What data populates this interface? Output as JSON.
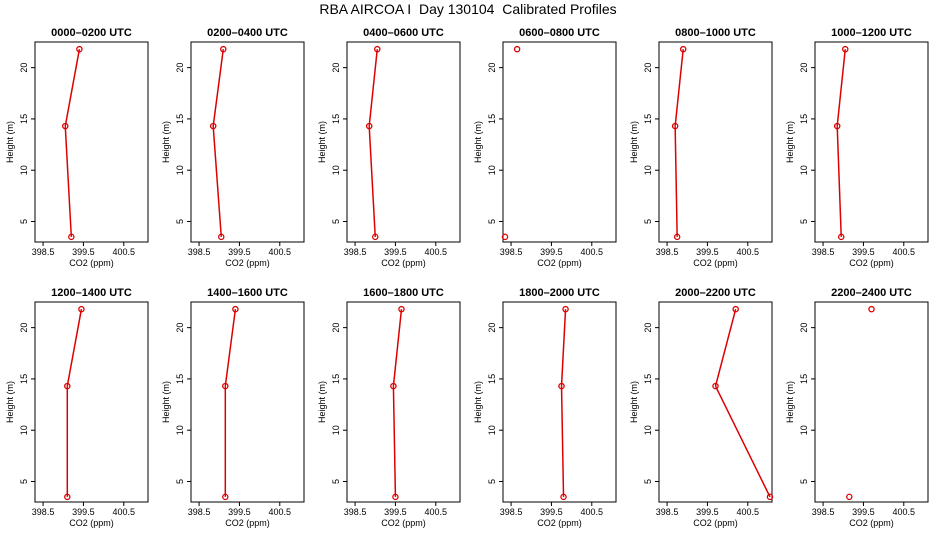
{
  "title": "RBA AIRCOA I  Day 130104  Calibrated Profiles",
  "colors": {
    "line": "#dd0000",
    "axis": "#000000",
    "background": "#ffffff"
  },
  "chart_data": [
    {
      "type": "line",
      "title": "0000–0200 UTC",
      "xlabel": "CO2 (ppm)",
      "ylabel": "Height (m)",
      "xlim": [
        398.3,
        401.1
      ],
      "ylim": [
        3,
        22.5
      ],
      "xticks": [
        398.5,
        399.5,
        400.5
      ],
      "xtick_labels": [
        "398.5",
        "399.5",
        "400.5"
      ],
      "yticks": [
        5,
        10,
        15,
        20
      ],
      "ytick_labels": [
        "5",
        "10",
        "15",
        "20"
      ],
      "points": [
        {
          "x": 399.2,
          "y": 3.5
        },
        {
          "x": 399.05,
          "y": 14.3
        },
        {
          "x": 399.4,
          "y": 21.8
        }
      ],
      "segments": [
        [
          0,
          1
        ],
        [
          1,
          2
        ]
      ]
    },
    {
      "type": "line",
      "title": "0200–0400 UTC",
      "xlabel": "CO2 (ppm)",
      "ylabel": "Height (m)",
      "xlim": [
        398.3,
        401.1
      ],
      "ylim": [
        3,
        22.5
      ],
      "xticks": [
        398.5,
        399.5,
        400.5
      ],
      "xtick_labels": [
        "398.5",
        "399.5",
        "400.5"
      ],
      "yticks": [
        5,
        10,
        15,
        20
      ],
      "ytick_labels": [
        "5",
        "10",
        "15",
        "20"
      ],
      "points": [
        {
          "x": 399.05,
          "y": 3.5
        },
        {
          "x": 398.85,
          "y": 14.3
        },
        {
          "x": 399.1,
          "y": 21.8
        }
      ],
      "segments": [
        [
          0,
          1
        ],
        [
          1,
          2
        ]
      ]
    },
    {
      "type": "line",
      "title": "0400–0600 UTC",
      "xlabel": "CO2 (ppm)",
      "ylabel": "Height (m)",
      "xlim": [
        398.3,
        401.1
      ],
      "ylim": [
        3,
        22.5
      ],
      "xticks": [
        398.5,
        399.5,
        400.5
      ],
      "xtick_labels": [
        "398.5",
        "399.5",
        "400.5"
      ],
      "yticks": [
        5,
        10,
        15,
        20
      ],
      "ytick_labels": [
        "5",
        "10",
        "15",
        "20"
      ],
      "points": [
        {
          "x": 399.0,
          "y": 3.5
        },
        {
          "x": 398.85,
          "y": 14.3
        },
        {
          "x": 399.05,
          "y": 21.8
        }
      ],
      "segments": [
        [
          0,
          1
        ],
        [
          1,
          2
        ]
      ]
    },
    {
      "type": "line",
      "title": "0600–0800 UTC",
      "xlabel": "CO2 (ppm)",
      "ylabel": "Height (m)",
      "xlim": [
        398.3,
        401.1
      ],
      "ylim": [
        3,
        22.5
      ],
      "xticks": [
        398.5,
        399.5,
        400.5
      ],
      "xtick_labels": [
        "398.5",
        "399.5",
        "400.5"
      ],
      "yticks": [
        5,
        10,
        15,
        20
      ],
      "ytick_labels": [
        "5",
        "10",
        "15",
        "20"
      ],
      "points": [
        {
          "x": 398.35,
          "y": 3.5
        },
        {
          "x": 398.65,
          "y": 21.8
        }
      ],
      "segments": []
    },
    {
      "type": "line",
      "title": "0800–1000 UTC",
      "xlabel": "CO2 (ppm)",
      "ylabel": "Height (m)",
      "xlim": [
        398.3,
        401.1
      ],
      "ylim": [
        3,
        22.5
      ],
      "xticks": [
        398.5,
        399.5,
        400.5
      ],
      "xtick_labels": [
        "398.5",
        "399.5",
        "400.5"
      ],
      "yticks": [
        5,
        10,
        15,
        20
      ],
      "ytick_labels": [
        "5",
        "10",
        "15",
        "20"
      ],
      "points": [
        {
          "x": 398.75,
          "y": 3.5
        },
        {
          "x": 398.7,
          "y": 14.3
        },
        {
          "x": 398.9,
          "y": 21.8
        }
      ],
      "segments": [
        [
          0,
          1
        ],
        [
          1,
          2
        ]
      ]
    },
    {
      "type": "line",
      "title": "1000–1200 UTC",
      "xlabel": "CO2 (ppm)",
      "ylabel": "Height (m)",
      "xlim": [
        398.3,
        401.1
      ],
      "ylim": [
        3,
        22.5
      ],
      "xticks": [
        398.5,
        399.5,
        400.5
      ],
      "xtick_labels": [
        "398.5",
        "399.5",
        "400.5"
      ],
      "yticks": [
        5,
        10,
        15,
        20
      ],
      "ytick_labels": [
        "5",
        "10",
        "15",
        "20"
      ],
      "points": [
        {
          "x": 398.95,
          "y": 3.5
        },
        {
          "x": 398.85,
          "y": 14.3
        },
        {
          "x": 399.05,
          "y": 21.8
        }
      ],
      "segments": [
        [
          0,
          1
        ],
        [
          1,
          2
        ]
      ]
    },
    {
      "type": "line",
      "title": "1200–1400 UTC",
      "xlabel": "CO2 (ppm)",
      "ylabel": "Height (m)",
      "xlim": [
        398.3,
        401.1
      ],
      "ylim": [
        3,
        22.5
      ],
      "xticks": [
        398.5,
        399.5,
        400.5
      ],
      "xtick_labels": [
        "398.5",
        "399.5",
        "400.5"
      ],
      "yticks": [
        5,
        10,
        15,
        20
      ],
      "ytick_labels": [
        "5",
        "10",
        "15",
        "20"
      ],
      "points": [
        {
          "x": 399.1,
          "y": 3.5
        },
        {
          "x": 399.1,
          "y": 14.3
        },
        {
          "x": 399.45,
          "y": 21.8
        }
      ],
      "segments": [
        [
          0,
          1
        ],
        [
          1,
          2
        ]
      ]
    },
    {
      "type": "line",
      "title": "1400–1600 UTC",
      "xlabel": "CO2 (ppm)",
      "ylabel": "Height (m)",
      "xlim": [
        398.3,
        401.1
      ],
      "ylim": [
        3,
        22.5
      ],
      "xticks": [
        398.5,
        399.5,
        400.5
      ],
      "xtick_labels": [
        "398.5",
        "399.5",
        "400.5"
      ],
      "yticks": [
        5,
        10,
        15,
        20
      ],
      "ytick_labels": [
        "5",
        "10",
        "15",
        "20"
      ],
      "points": [
        {
          "x": 399.15,
          "y": 3.5
        },
        {
          "x": 399.15,
          "y": 14.3
        },
        {
          "x": 399.4,
          "y": 21.8
        }
      ],
      "segments": [
        [
          0,
          1
        ],
        [
          1,
          2
        ]
      ]
    },
    {
      "type": "line",
      "title": "1600–1800 UTC",
      "xlabel": "CO2 (ppm)",
      "ylabel": "Height (m)",
      "xlim": [
        398.3,
        401.1
      ],
      "ylim": [
        3,
        22.5
      ],
      "xticks": [
        398.5,
        399.5,
        400.5
      ],
      "xtick_labels": [
        "398.5",
        "399.5",
        "400.5"
      ],
      "yticks": [
        5,
        10,
        15,
        20
      ],
      "ytick_labels": [
        "5",
        "10",
        "15",
        "20"
      ],
      "points": [
        {
          "x": 399.5,
          "y": 3.5
        },
        {
          "x": 399.45,
          "y": 14.3
        },
        {
          "x": 399.65,
          "y": 21.8
        }
      ],
      "segments": [
        [
          0,
          1
        ],
        [
          1,
          2
        ]
      ]
    },
    {
      "type": "line",
      "title": "1800–2000 UTC",
      "xlabel": "CO2 (ppm)",
      "ylabel": "Height (m)",
      "xlim": [
        398.3,
        401.1
      ],
      "ylim": [
        3,
        22.5
      ],
      "xticks": [
        398.5,
        399.5,
        400.5
      ],
      "xtick_labels": [
        "398.5",
        "399.5",
        "400.5"
      ],
      "yticks": [
        5,
        10,
        15,
        20
      ],
      "ytick_labels": [
        "5",
        "10",
        "15",
        "20"
      ],
      "points": [
        {
          "x": 399.8,
          "y": 3.5
        },
        {
          "x": 399.75,
          "y": 14.3
        },
        {
          "x": 399.85,
          "y": 21.8
        }
      ],
      "segments": [
        [
          0,
          1
        ],
        [
          1,
          2
        ]
      ]
    },
    {
      "type": "line",
      "title": "2000–2200 UTC",
      "xlabel": "CO2 (ppm)",
      "ylabel": "Height (m)",
      "xlim": [
        398.3,
        401.1
      ],
      "ylim": [
        3,
        22.5
      ],
      "xticks": [
        398.5,
        399.5,
        400.5
      ],
      "xtick_labels": [
        "398.5",
        "399.5",
        "400.5"
      ],
      "yticks": [
        5,
        10,
        15,
        20
      ],
      "ytick_labels": [
        "5",
        "10",
        "15",
        "20"
      ],
      "points": [
        {
          "x": 401.05,
          "y": 3.5
        },
        {
          "x": 399.7,
          "y": 14.3
        },
        {
          "x": 400.2,
          "y": 21.8
        }
      ],
      "segments": [
        [
          0,
          1
        ],
        [
          1,
          2
        ]
      ]
    },
    {
      "type": "line",
      "title": "2200–2400 UTC",
      "xlabel": "CO2 (ppm)",
      "ylabel": "Height (m)",
      "xlim": [
        398.3,
        401.1
      ],
      "ylim": [
        3,
        22.5
      ],
      "xticks": [
        398.5,
        399.5,
        400.5
      ],
      "xtick_labels": [
        "398.5",
        "399.5",
        "400.5"
      ],
      "yticks": [
        5,
        10,
        15,
        20
      ],
      "ytick_labels": [
        "5",
        "10",
        "15",
        "20"
      ],
      "points": [
        {
          "x": 399.15,
          "y": 3.5
        },
        {
          "x": 399.7,
          "y": 21.8
        }
      ],
      "segments": []
    }
  ]
}
